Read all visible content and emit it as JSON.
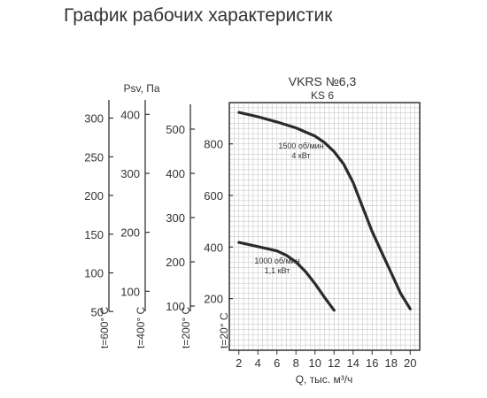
{
  "page_title": "График рабочих характеристик",
  "chart_data": {
    "type": "line",
    "title": "VKRS №6,3",
    "subtitle": "KS 6",
    "xlabel": "Q, тыс. м³/ч",
    "ylabel": "Psv, Па",
    "x_ticks": [
      2,
      4,
      6,
      8,
      10,
      12,
      14,
      16,
      18,
      20
    ],
    "y_ticks": [
      200,
      400,
      600,
      800
    ],
    "xlim": [
      1,
      21
    ],
    "ylim": [
      0,
      960
    ],
    "grid": true,
    "series": [
      {
        "label_lines": [
          "1500 об/мин",
          "4 кВт"
        ],
        "x": [
          2,
          4,
          6,
          8,
          10,
          11,
          12,
          13,
          14,
          15,
          16,
          17,
          18,
          19,
          20
        ],
        "y": [
          922,
          905,
          885,
          862,
          830,
          805,
          770,
          722,
          650,
          555,
          460,
          380,
          300,
          220,
          160
        ]
      },
      {
        "label_lines": [
          "1000 об/мин",
          "1,1 кВт"
        ],
        "x": [
          2,
          4,
          6,
          7,
          8,
          9,
          10,
          11,
          12
        ],
        "y": [
          418,
          402,
          385,
          368,
          342,
          305,
          258,
          205,
          155
        ]
      }
    ],
    "temperature_axes": [
      {
        "label": "t=600° C",
        "ticks": [
          50,
          100,
          150,
          200,
          250,
          300
        ],
        "max": 320
      },
      {
        "label": "t=400° C",
        "ticks": [
          100,
          200,
          300,
          400
        ],
        "max": 420
      },
      {
        "label": "t=200° C",
        "ticks": [
          100,
          200,
          300,
          400,
          500
        ],
        "max": 560
      },
      {
        "label": "t=20° C",
        "ticks": [
          200,
          400,
          600,
          800
        ],
        "max": 960
      }
    ]
  }
}
